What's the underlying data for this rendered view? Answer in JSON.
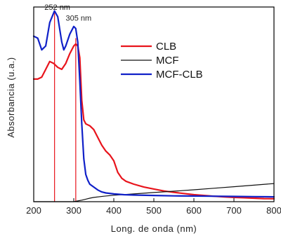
{
  "chart_data": {
    "type": "line",
    "title": "",
    "xlabel": "Long. de onda (nm)",
    "ylabel": "Absorbancia (u.a.)",
    "xlim": [
      200,
      800
    ],
    "ylim": [
      0,
      1
    ],
    "xticks": [
      200,
      300,
      400,
      500,
      600,
      700,
      800
    ],
    "grid": false,
    "legend_position": "top-right",
    "annotations": [
      {
        "text": "252 nm",
        "x": 252,
        "line_top": 0.97,
        "label_y": 1.0
      },
      {
        "text": "305 nm",
        "x": 305,
        "line_top": 0.84,
        "label_y": 0.945
      }
    ],
    "series": [
      {
        "name": "CLB",
        "color": "#e8141c",
        "x": [
          200,
          210,
          220,
          230,
          240,
          250,
          260,
          270,
          280,
          290,
          300,
          305,
          310,
          315,
          320,
          325,
          330,
          340,
          350,
          360,
          370,
          380,
          390,
          400,
          410,
          420,
          430,
          450,
          475,
          500,
          525,
          550,
          575,
          600,
          625,
          650,
          675,
          700,
          725,
          750,
          775,
          800
        ],
        "y": [
          0.63,
          0.63,
          0.64,
          0.68,
          0.72,
          0.71,
          0.69,
          0.68,
          0.71,
          0.76,
          0.8,
          0.81,
          0.8,
          0.74,
          0.52,
          0.42,
          0.4,
          0.39,
          0.37,
          0.33,
          0.29,
          0.26,
          0.24,
          0.21,
          0.15,
          0.12,
          0.105,
          0.09,
          0.075,
          0.065,
          0.055,
          0.048,
          0.042,
          0.036,
          0.032,
          0.028,
          0.025,
          0.022,
          0.02,
          0.018,
          0.016,
          0.015
        ]
      },
      {
        "name": "MCF",
        "color": "#111111",
        "x": [
          200,
          300,
          310,
          320,
          330,
          340,
          350,
          375,
          400,
          450,
          500,
          550,
          600,
          650,
          700,
          750,
          800
        ],
        "y": [
          0.0,
          0.0,
          0.004,
          0.008,
          0.013,
          0.018,
          0.022,
          0.028,
          0.033,
          0.04,
          0.047,
          0.054,
          0.061,
          0.069,
          0.077,
          0.085,
          0.093
        ]
      },
      {
        "name": "MCF-CLB",
        "color": "#1020c8",
        "x": [
          200,
          210,
          220,
          230,
          240,
          252,
          260,
          270,
          275,
          280,
          290,
          300,
          305,
          310,
          315,
          320,
          325,
          330,
          335,
          340,
          350,
          360,
          370,
          380,
          400,
          425,
          450,
          500,
          550,
          600,
          650,
          700,
          750,
          800
        ],
        "y": [
          0.85,
          0.84,
          0.78,
          0.8,
          0.92,
          0.98,
          0.95,
          0.82,
          0.78,
          0.8,
          0.86,
          0.9,
          0.89,
          0.82,
          0.62,
          0.4,
          0.22,
          0.14,
          0.11,
          0.09,
          0.075,
          0.06,
          0.05,
          0.045,
          0.04,
          0.036,
          0.034,
          0.032,
          0.03,
          0.029,
          0.028,
          0.027,
          0.026,
          0.025
        ]
      }
    ]
  }
}
